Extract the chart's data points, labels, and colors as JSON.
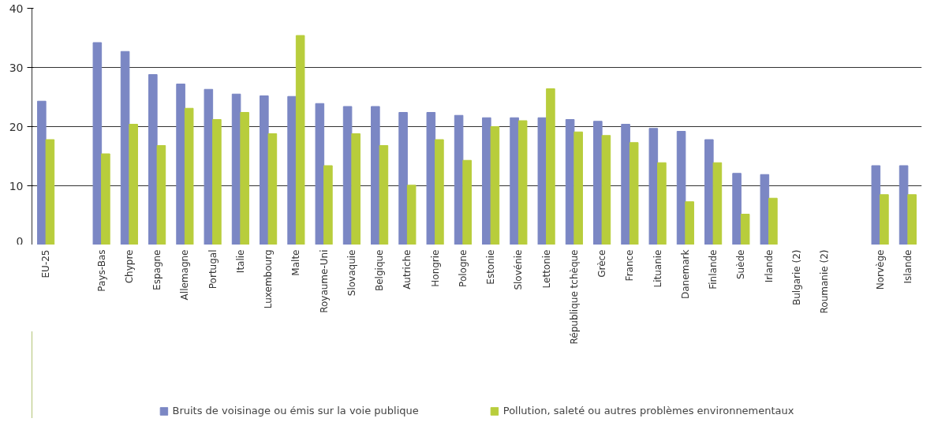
{
  "chart_data": {
    "type": "bar",
    "categories": [
      "EU-25",
      null,
      "Pays-Bas",
      "Chypre",
      "Espagne",
      "Allemagne",
      "Portugal",
      "Italie",
      "Luxembourg",
      "Malte",
      "Royaume-Uni",
      "Slovaquie",
      "Belgique",
      "Autriche",
      "Hongrie",
      "Pologne",
      "Estonie",
      "Slovénie",
      "Lettonie",
      "République tchèque",
      "Grèce",
      "France",
      "Lituanie",
      "Danemark",
      "Finlande",
      "Suède",
      "Irlande",
      "Bulgarie (2)",
      "Roumanie (2)",
      null,
      "Norvège",
      "Islande"
    ],
    "series": [
      {
        "name": "Bruits de voisinage ou émis sur la voie publique",
        "color": "#7b87c4",
        "values": [
          24.3,
          null,
          34.2,
          32.7,
          28.8,
          27.2,
          26.3,
          25.5,
          25.2,
          25.1,
          23.9,
          23.4,
          23.4,
          22.4,
          22.4,
          21.9,
          21.5,
          21.5,
          21.5,
          21.2,
          20.9,
          20.4,
          19.7,
          19.2,
          17.8,
          12.1,
          11.9,
          null,
          null,
          null,
          13.4,
          13.4
        ]
      },
      {
        "name": "Pollution, saleté ou autres problèmes environnementaux",
        "color": "#b8cd3c",
        "values": [
          17.8,
          null,
          15.4,
          20.4,
          16.8,
          23.1,
          21.2,
          22.4,
          18.8,
          35.4,
          13.4,
          18.8,
          16.8,
          10.1,
          17.8,
          14.3,
          20.0,
          21.0,
          26.4,
          19.1,
          18.5,
          17.3,
          13.9,
          7.3,
          13.9,
          5.2,
          7.9,
          null,
          null,
          null,
          8.5,
          8.5
        ]
      }
    ],
    "ylim": [
      0,
      40
    ],
    "yticks": [
      0,
      10,
      20,
      30,
      40
    ],
    "grid": "y",
    "legend": "bottom"
  }
}
